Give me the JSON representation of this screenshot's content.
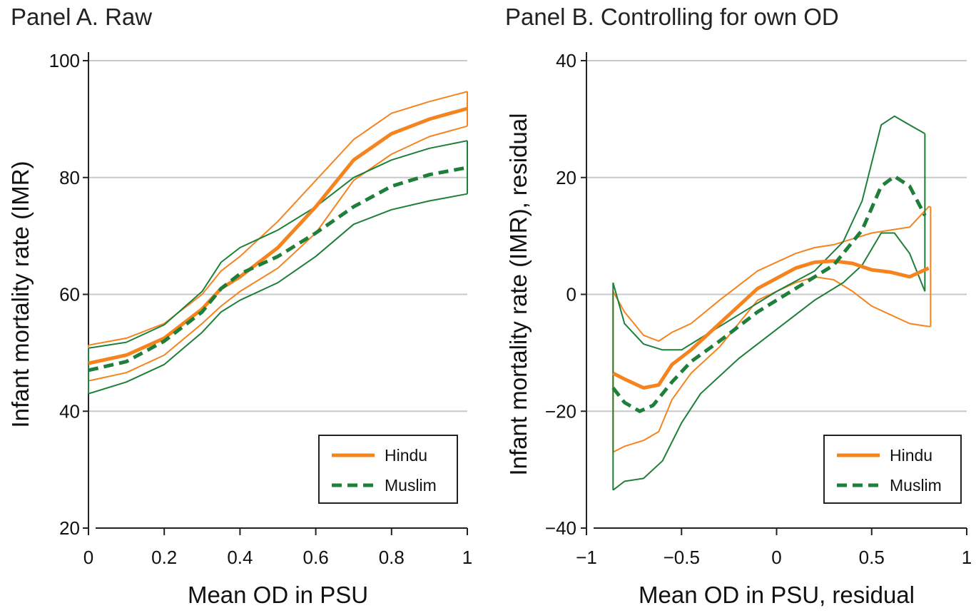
{
  "colors": {
    "hindu": "#F5841F",
    "muslim": "#1E7F3A",
    "grid": "#C8C8C8",
    "axis": "#222222"
  },
  "chart_data": [
    {
      "type": "line",
      "title": "Panel A. Raw",
      "xlabel": "Mean OD in PSU",
      "ylabel": "Infant mortality rate (IMR)",
      "xlim": [
        0,
        1
      ],
      "ylim": [
        20,
        100
      ],
      "xticks": [
        0,
        0.2,
        0.4,
        0.6,
        0.8,
        1
      ],
      "xtick_labels": [
        "0",
        "0.2",
        "0.4",
        "0.6",
        "0.8",
        "1"
      ],
      "yticks": [
        20,
        40,
        60,
        80,
        100
      ],
      "ytick_labels": [
        "20",
        "40",
        "60",
        "80",
        "100"
      ],
      "grid": true,
      "legend_position": "bottom-right",
      "series": [
        {
          "name": "Hindu",
          "style": "solid",
          "x": [
            0,
            0.1,
            0.2,
            0.3,
            0.35,
            0.4,
            0.5,
            0.6,
            0.7,
            0.8,
            0.9,
            1
          ],
          "values": [
            48.2,
            49.6,
            52.5,
            57.5,
            61.0,
            63.0,
            68.0,
            75.0,
            83.0,
            87.5,
            90.0,
            91.8
          ]
        },
        {
          "name": "Hindu 95% CI upper",
          "style": "ci",
          "x": [
            0,
            0.1,
            0.2,
            0.3,
            0.35,
            0.4,
            0.5,
            0.6,
            0.7,
            0.8,
            0.9,
            1
          ],
          "values": [
            51.3,
            52.5,
            55.0,
            60.0,
            64.0,
            66.5,
            72.5,
            79.5,
            86.5,
            91.0,
            93.0,
            94.7
          ]
        },
        {
          "name": "Hindu 95% CI lower",
          "style": "ci",
          "x": [
            0,
            0.1,
            0.2,
            0.3,
            0.35,
            0.4,
            0.5,
            0.6,
            0.7,
            0.8,
            0.9,
            1
          ],
          "values": [
            45.2,
            46.6,
            49.6,
            55.0,
            58.0,
            60.5,
            64.5,
            70.5,
            79.5,
            84.0,
            87.0,
            88.8
          ]
        },
        {
          "name": "Muslim",
          "style": "dashed",
          "x": [
            0,
            0.1,
            0.2,
            0.3,
            0.35,
            0.4,
            0.5,
            0.6,
            0.7,
            0.8,
            0.9,
            1
          ],
          "values": [
            47.0,
            48.5,
            52.0,
            57.0,
            61.0,
            63.5,
            66.5,
            70.5,
            75.0,
            78.5,
            80.5,
            81.7
          ]
        },
        {
          "name": "Muslim 95% CI upper",
          "style": "ci",
          "x": [
            0,
            0.1,
            0.2,
            0.3,
            0.35,
            0.4,
            0.5,
            0.6,
            0.7,
            0.8,
            0.9,
            1
          ],
          "values": [
            50.8,
            51.8,
            54.8,
            60.5,
            65.5,
            68.0,
            71.0,
            75.0,
            80.0,
            83.0,
            85.0,
            86.3
          ]
        },
        {
          "name": "Muslim 95% CI lower",
          "style": "ci",
          "x": [
            0,
            0.1,
            0.2,
            0.3,
            0.35,
            0.4,
            0.5,
            0.6,
            0.7,
            0.8,
            0.9,
            1
          ],
          "values": [
            43.0,
            45.0,
            48.0,
            53.5,
            57.0,
            59.0,
            62.0,
            66.5,
            72.0,
            74.5,
            76.0,
            77.2
          ]
        }
      ]
    },
    {
      "type": "line",
      "title": "Panel B. Controlling for own OD",
      "xlabel": "Mean OD in PSU, residual",
      "ylabel": "Infant mortality rate (IMR), residual",
      "xlim": [
        -1,
        1
      ],
      "ylim": [
        -40,
        40
      ],
      "xticks": [
        -1,
        -0.5,
        0,
        0.5,
        1
      ],
      "xtick_labels": [
        "−1",
        "−0.5",
        "0",
        "0.5",
        "1"
      ],
      "yticks": [
        -40,
        -20,
        0,
        20,
        40
      ],
      "ytick_labels": [
        "−40",
        "−20",
        "0",
        "20",
        "40"
      ],
      "grid": true,
      "legend_position": "bottom-right",
      "series": [
        {
          "name": "Hindu",
          "style": "solid",
          "x": [
            -0.86,
            -0.8,
            -0.7,
            -0.62,
            -0.55,
            -0.45,
            -0.3,
            -0.1,
            0.1,
            0.2,
            0.3,
            0.4,
            0.5,
            0.6,
            0.7,
            0.8
          ],
          "values": [
            -13.5,
            -14.5,
            -16.0,
            -15.5,
            -12.0,
            -9.5,
            -5.0,
            1.0,
            4.5,
            5.5,
            5.7,
            5.3,
            4.2,
            3.8,
            3.0,
            4.5
          ]
        },
        {
          "name": "Hindu 95% CI upper",
          "style": "ci",
          "x": [
            -0.86,
            -0.8,
            -0.7,
            -0.62,
            -0.55,
            -0.45,
            -0.3,
            -0.1,
            0.1,
            0.2,
            0.3,
            0.4,
            0.5,
            0.6,
            0.7,
            0.8,
            0.81
          ],
          "values": [
            0.5,
            -3.0,
            -7.0,
            -8.0,
            -6.5,
            -5.0,
            -1.0,
            4.0,
            7.0,
            8.0,
            8.5,
            9.5,
            10.5,
            11.0,
            11.5,
            15.0,
            15.0
          ]
        },
        {
          "name": "Hindu 95% CI lower",
          "style": "ci",
          "x": [
            -0.86,
            -0.8,
            -0.7,
            -0.62,
            -0.55,
            -0.45,
            -0.3,
            -0.1,
            0.1,
            0.2,
            0.3,
            0.4,
            0.5,
            0.6,
            0.7,
            0.8,
            0.81
          ],
          "values": [
            -27.0,
            -26.0,
            -25.0,
            -23.5,
            -18.0,
            -13.5,
            -9.0,
            -1.0,
            2.0,
            3.0,
            2.5,
            0.5,
            -2.0,
            -3.5,
            -5.0,
            -5.5,
            -5.5
          ]
        },
        {
          "name": "Muslim",
          "style": "dashed",
          "x": [
            -0.86,
            -0.8,
            -0.72,
            -0.65,
            -0.55,
            -0.45,
            -0.3,
            -0.1,
            0.1,
            0.3,
            0.45,
            0.55,
            0.62,
            0.7,
            0.78
          ],
          "values": [
            -16.0,
            -18.5,
            -20.0,
            -19.0,
            -15.0,
            -11.5,
            -8.0,
            -3.0,
            1.0,
            5.0,
            11.0,
            18.5,
            20.2,
            18.5,
            13.5
          ]
        },
        {
          "name": "Muslim 95% CI upper",
          "style": "ci",
          "x": [
            -0.86,
            -0.8,
            -0.7,
            -0.6,
            -0.5,
            -0.4,
            -0.2,
            0.0,
            0.2,
            0.35,
            0.45,
            0.55,
            0.62,
            0.7,
            0.78
          ],
          "values": [
            2.0,
            -5.0,
            -8.5,
            -9.5,
            -9.5,
            -7.5,
            -3.5,
            0.5,
            4.0,
            9.0,
            16.0,
            29.0,
            30.5,
            29.0,
            27.5
          ]
        },
        {
          "name": "Muslim 95% CI lower",
          "style": "ci",
          "x": [
            -0.86,
            -0.8,
            -0.7,
            -0.6,
            -0.5,
            -0.4,
            -0.2,
            0.0,
            0.2,
            0.35,
            0.45,
            0.55,
            0.62,
            0.7,
            0.78
          ],
          "values": [
            -33.5,
            -32.0,
            -31.5,
            -28.5,
            -22.0,
            -17.0,
            -11.0,
            -6.0,
            -1.0,
            2.0,
            5.0,
            10.5,
            10.5,
            7.0,
            0.5
          ]
        }
      ]
    }
  ]
}
